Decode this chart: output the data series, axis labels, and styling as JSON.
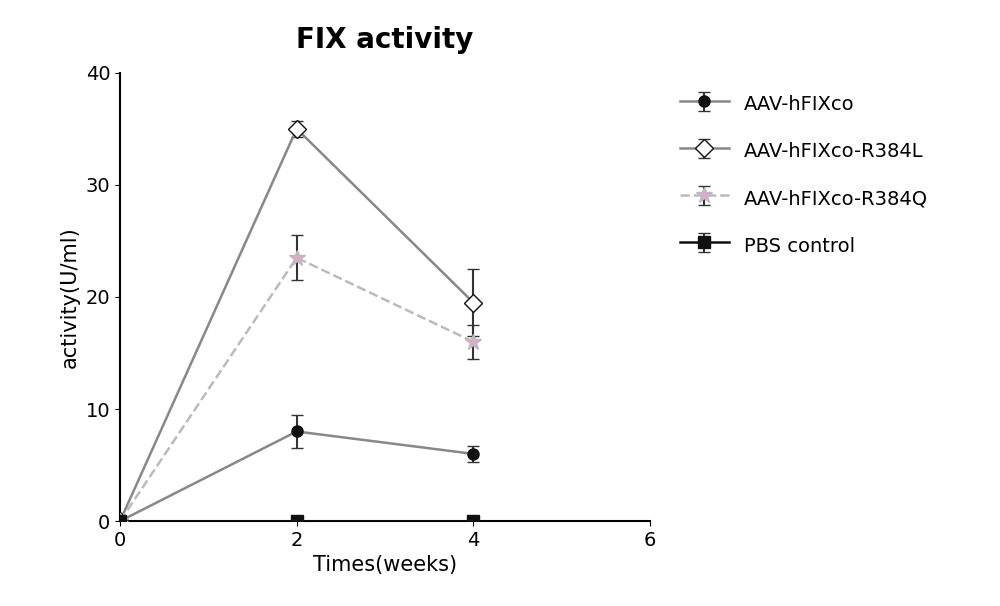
{
  "title": "FIX activity",
  "xlabel": "Times(weeks)",
  "ylabel": "activity(U/ml)",
  "xlim": [
    0,
    6
  ],
  "ylim": [
    0,
    40
  ],
  "xticks": [
    0,
    2,
    4,
    6
  ],
  "yticks": [
    0,
    10,
    20,
    30,
    40
  ],
  "series": [
    {
      "label": "AAV-hFIXco",
      "x": [
        0,
        2,
        4
      ],
      "y": [
        0,
        8,
        6
      ],
      "yerr": [
        0,
        1.5,
        0.7
      ],
      "color": "#888888",
      "linestyle": "-",
      "marker": "o",
      "marker_facecolor": "#111111",
      "marker_edgecolor": "#111111",
      "marker_size": 8,
      "linewidth": 1.8
    },
    {
      "label": "AAV-hFIXco-R384L",
      "x": [
        0,
        2,
        4
      ],
      "y": [
        0,
        35,
        19.5
      ],
      "yerr": [
        0,
        0.7,
        3.0
      ],
      "color": "#888888",
      "linestyle": "-",
      "marker": "D",
      "marker_facecolor": "white",
      "marker_edgecolor": "#111111",
      "marker_size": 9,
      "linewidth": 1.8
    },
    {
      "label": "AAV-hFIXco-R384Q",
      "x": [
        0,
        2,
        4
      ],
      "y": [
        0,
        23.5,
        16
      ],
      "yerr": [
        0,
        2.0,
        1.5
      ],
      "color": "#bbbbbb",
      "linestyle": "--",
      "marker": "*",
      "marker_facecolor": "#ddaacc",
      "marker_edgecolor": "#bbbbbb",
      "marker_size": 12,
      "linewidth": 1.8
    },
    {
      "label": "PBS control",
      "x": [
        0,
        2,
        4
      ],
      "y": [
        0,
        0,
        0
      ],
      "yerr": [
        0,
        0,
        0
      ],
      "color": "#111111",
      "linestyle": "-",
      "marker": "s",
      "marker_facecolor": "#111111",
      "marker_edgecolor": "#111111",
      "marker_size": 8,
      "linewidth": 1.8
    }
  ],
  "figsize": [
    10.0,
    6.06
  ],
  "dpi": 100,
  "title_fontsize": 20,
  "axis_label_fontsize": 15,
  "tick_fontsize": 14,
  "legend_fontsize": 14,
  "background_color": "#ffffff"
}
